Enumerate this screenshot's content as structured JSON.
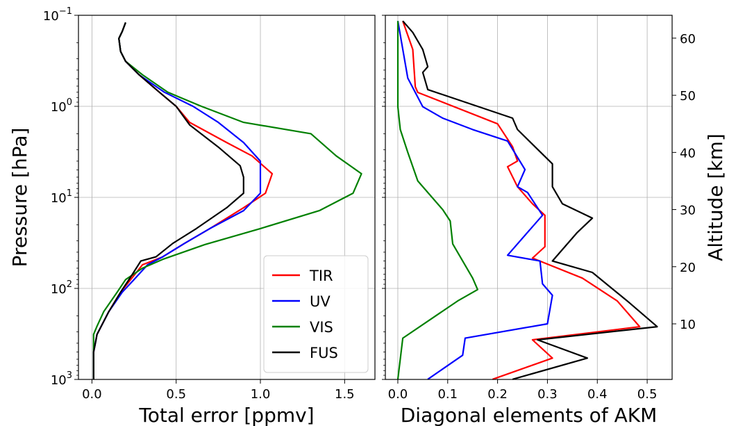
{
  "chart_data": [
    {
      "type": "line",
      "title": "",
      "xlabel": "Total error [ppmv]",
      "ylabel": "Pressure [hPa]",
      "xlim": [
        -0.08,
        1.68
      ],
      "ylim": [
        1000,
        0.1
      ],
      "yscale": "log",
      "xticks": [
        "0.0",
        "0.5",
        "1.0",
        "1.5"
      ],
      "yticks": [
        {
          "base": "10",
          "exp": "−1"
        },
        {
          "base": "10",
          "exp": "0"
        },
        {
          "base": "10",
          "exp": "1"
        },
        {
          "base": "10",
          "exp": "2"
        },
        {
          "base": "10",
          "exp": "3"
        }
      ],
      "grid": true,
      "legend_position": "lower-right",
      "series": [
        {
          "name": "TIR",
          "color": "#ff0000",
          "points": [
            [
              0.2,
              0.12
            ],
            [
              0.18,
              0.15
            ],
            [
              0.16,
              0.18
            ],
            [
              0.17,
              0.25
            ],
            [
              0.2,
              0.32
            ],
            [
              0.28,
              0.45
            ],
            [
              0.4,
              0.7
            ],
            [
              0.5,
              1.0
            ],
            [
              0.58,
              1.5
            ],
            [
              0.8,
              2.5
            ],
            [
              0.95,
              3.5
            ],
            [
              1.07,
              5.5
            ],
            [
              1.03,
              9
            ],
            [
              0.9,
              13
            ],
            [
              0.7,
              22
            ],
            [
              0.55,
              32
            ],
            [
              0.42,
              45
            ],
            [
              0.3,
              55
            ],
            [
              0.23,
              80
            ],
            [
              0.17,
              110
            ],
            [
              0.1,
              180
            ],
            [
              0.06,
              250
            ],
            [
              0.03,
              320
            ],
            [
              0.02,
              400
            ],
            [
              0.01,
              500
            ],
            [
              0.01,
              700
            ],
            [
              0.01,
              1000
            ]
          ]
        },
        {
          "name": "UV",
          "color": "#0000ff",
          "points": [
            [
              0.2,
              0.12
            ],
            [
              0.18,
              0.15
            ],
            [
              0.16,
              0.18
            ],
            [
              0.17,
              0.25
            ],
            [
              0.2,
              0.32
            ],
            [
              0.28,
              0.45
            ],
            [
              0.43,
              0.7
            ],
            [
              0.6,
              1.0
            ],
            [
              0.75,
              1.5
            ],
            [
              0.9,
              2.5
            ],
            [
              1.0,
              4.0
            ],
            [
              1.0,
              6
            ],
            [
              1.0,
              9
            ],
            [
              0.9,
              14
            ],
            [
              0.7,
              22
            ],
            [
              0.55,
              32
            ],
            [
              0.42,
              45
            ],
            [
              0.33,
              55
            ],
            [
              0.25,
              80
            ],
            [
              0.18,
              110
            ],
            [
              0.1,
              180
            ],
            [
              0.06,
              250
            ],
            [
              0.03,
              320
            ],
            [
              0.02,
              400
            ],
            [
              0.01,
              500
            ],
            [
              0.01,
              700
            ],
            [
              0.01,
              1000
            ]
          ]
        },
        {
          "name": "VIS",
          "color": "#008000",
          "points": [
            [
              0.2,
              0.12
            ],
            [
              0.18,
              0.15
            ],
            [
              0.16,
              0.18
            ],
            [
              0.17,
              0.25
            ],
            [
              0.2,
              0.32
            ],
            [
              0.3,
              0.45
            ],
            [
              0.45,
              0.7
            ],
            [
              0.65,
              1.0
            ],
            [
              0.9,
              1.5
            ],
            [
              1.3,
              2.0
            ],
            [
              1.45,
              3.5
            ],
            [
              1.6,
              5.5
            ],
            [
              1.55,
              9
            ],
            [
              1.35,
              14
            ],
            [
              1.0,
              22
            ],
            [
              0.67,
              33
            ],
            [
              0.42,
              48
            ],
            [
              0.3,
              60
            ],
            [
              0.2,
              80
            ],
            [
              0.15,
              110
            ],
            [
              0.07,
              180
            ],
            [
              0.03,
              260
            ],
            [
              0.01,
              320
            ],
            [
              0.01,
              400
            ],
            [
              0.01,
              500
            ],
            [
              0.01,
              700
            ],
            [
              0.01,
              1000
            ]
          ]
        },
        {
          "name": "FUS",
          "color": "#000000",
          "points": [
            [
              0.2,
              0.12
            ],
            [
              0.18,
              0.15
            ],
            [
              0.16,
              0.18
            ],
            [
              0.17,
              0.25
            ],
            [
              0.2,
              0.32
            ],
            [
              0.28,
              0.45
            ],
            [
              0.4,
              0.7
            ],
            [
              0.5,
              1.0
            ],
            [
              0.58,
              1.6
            ],
            [
              0.75,
              2.8
            ],
            [
              0.88,
              4.5
            ],
            [
              0.9,
              6
            ],
            [
              0.9,
              9
            ],
            [
              0.8,
              13
            ],
            [
              0.62,
              22
            ],
            [
              0.48,
              32
            ],
            [
              0.38,
              45
            ],
            [
              0.29,
              50
            ],
            [
              0.23,
              75
            ],
            [
              0.17,
              110
            ],
            [
              0.1,
              180
            ],
            [
              0.06,
              250
            ],
            [
              0.03,
              320
            ],
            [
              0.02,
              400
            ],
            [
              0.01,
              500
            ],
            [
              0.01,
              700
            ],
            [
              0.01,
              1000
            ]
          ]
        }
      ]
    },
    {
      "type": "line",
      "title": "",
      "xlabel": "Diagonal elements of AKM",
      "ylabel_right": "Altitude [km]",
      "xlim": [
        -0.025,
        0.55
      ],
      "ylim": [
        0.27,
        64
      ],
      "xticks": [
        "0.0",
        "0.1",
        "0.2",
        "0.3",
        "0.4",
        "0.5"
      ],
      "yticks_right": [
        "10",
        "20",
        "30",
        "40",
        "50",
        "60"
      ],
      "grid": true,
      "series": [
        {
          "name": "TIR",
          "color": "#ff0000",
          "points": [
            [
              0.19,
              0.3
            ],
            [
              0.31,
              4.0
            ],
            [
              0.27,
              7.2
            ],
            [
              0.485,
              9.5
            ],
            [
              0.44,
              14
            ],
            [
              0.37,
              18
            ],
            [
              0.27,
              21.5
            ],
            [
              0.295,
              23.5
            ],
            [
              0.295,
              29
            ],
            [
              0.27,
              31
            ],
            [
              0.24,
              34
            ],
            [
              0.22,
              37.5
            ],
            [
              0.24,
              38.5
            ],
            [
              0.23,
              41
            ],
            [
              0.2,
              45
            ],
            [
              0.04,
              50.5
            ],
            [
              0.035,
              51.5
            ],
            [
              0.03,
              58
            ],
            [
              0.01,
              63
            ]
          ]
        },
        {
          "name": "UV",
          "color": "#0000ff",
          "points": [
            [
              0.06,
              0.3
            ],
            [
              0.13,
              4.5
            ],
            [
              0.135,
              7.5
            ],
            [
              0.3,
              10
            ],
            [
              0.31,
              15
            ],
            [
              0.29,
              17
            ],
            [
              0.285,
              21
            ],
            [
              0.22,
              22
            ],
            [
              0.29,
              29
            ],
            [
              0.26,
              33
            ],
            [
              0.24,
              34
            ],
            [
              0.255,
              37
            ],
            [
              0.22,
              42
            ],
            [
              0.15,
              44
            ],
            [
              0.09,
              46
            ],
            [
              0.05,
              48
            ],
            [
              0.02,
              53
            ],
            [
              0.0,
              63
            ]
          ]
        },
        {
          "name": "VIS",
          "color": "#008000",
          "points": [
            [
              0.0,
              0.3
            ],
            [
              0.01,
              7.5
            ],
            [
              0.12,
              14
            ],
            [
              0.16,
              16
            ],
            [
              0.15,
              18
            ],
            [
              0.11,
              24
            ],
            [
              0.105,
              28
            ],
            [
              0.09,
              30
            ],
            [
              0.04,
              35
            ],
            [
              0.02,
              40
            ],
            [
              0.005,
              44
            ],
            [
              0.0,
              48
            ],
            [
              0.0,
              63
            ]
          ]
        },
        {
          "name": "FUS",
          "color": "#000000",
          "points": [
            [
              0.23,
              0.3
            ],
            [
              0.38,
              4.0
            ],
            [
              0.28,
              7.2
            ],
            [
              0.52,
              9.5
            ],
            [
              0.46,
              14
            ],
            [
              0.39,
              19
            ],
            [
              0.31,
              21
            ],
            [
              0.36,
              26
            ],
            [
              0.39,
              28.5
            ],
            [
              0.33,
              31
            ],
            [
              0.31,
              34
            ],
            [
              0.31,
              38
            ],
            [
              0.24,
              44
            ],
            [
              0.23,
              46
            ],
            [
              0.06,
              51
            ],
            [
              0.05,
              54
            ],
            [
              0.06,
              55
            ],
            [
              0.05,
              58
            ],
            [
              0.03,
              61
            ],
            [
              0.01,
              63
            ]
          ]
        }
      ]
    }
  ]
}
